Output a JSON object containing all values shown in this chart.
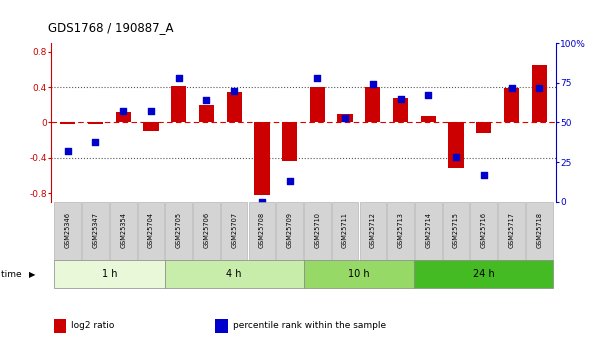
{
  "title": "GDS1768 / 190887_A",
  "samples": [
    "GSM25346",
    "GSM25347",
    "GSM25354",
    "GSM25704",
    "GSM25705",
    "GSM25706",
    "GSM25707",
    "GSM25708",
    "GSM25709",
    "GSM25710",
    "GSM25711",
    "GSM25712",
    "GSM25713",
    "GSM25714",
    "GSM25715",
    "GSM25716",
    "GSM25717",
    "GSM25718"
  ],
  "log2_ratio": [
    -0.02,
    -0.02,
    0.12,
    -0.1,
    0.41,
    0.2,
    0.34,
    -0.82,
    -0.44,
    0.4,
    0.1,
    0.4,
    0.28,
    0.07,
    -0.52,
    -0.12,
    0.39,
    0.65
  ],
  "percentile": [
    32,
    38,
    57,
    57,
    78,
    64,
    70,
    0,
    13,
    78,
    53,
    74,
    65,
    67,
    28,
    17,
    72,
    72
  ],
  "time_groups": [
    {
      "label": "1 h",
      "start": 0,
      "end": 4,
      "color": "#e8f8d8"
    },
    {
      "label": "4 h",
      "start": 4,
      "end": 9,
      "color": "#c8ecaa"
    },
    {
      "label": "10 h",
      "start": 9,
      "end": 13,
      "color": "#96d966"
    },
    {
      "label": "24 h",
      "start": 13,
      "end": 18,
      "color": "#44bb22"
    }
  ],
  "bar_color": "#cc0000",
  "dot_color": "#0000cc",
  "bar_width": 0.55,
  "ylim_left": [
    -0.9,
    0.9
  ],
  "ylim_right": [
    0,
    100
  ],
  "yticks_left": [
    -0.8,
    -0.4,
    0.0,
    0.4,
    0.8
  ],
  "yticks_right": [
    0,
    25,
    50,
    75,
    100
  ],
  "yticklabels_right": [
    "0",
    "25",
    "50",
    "75",
    "100%"
  ],
  "hlines_dotted": [
    0.4,
    -0.4
  ],
  "hline_zero_color": "#dd0000",
  "dot_line_color": "#555555",
  "bg_plot": "#ffffff",
  "bg_figure": "#ffffff",
  "time_label": "time"
}
